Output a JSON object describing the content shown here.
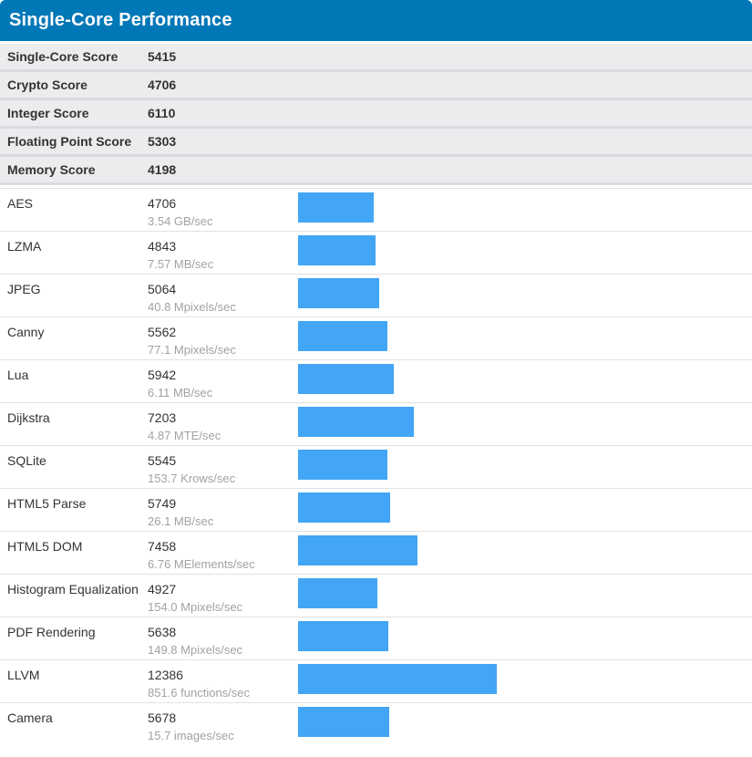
{
  "header": {
    "title": "Single-Core Performance"
  },
  "summary": {
    "rows": [
      {
        "label": "Single-Core Score",
        "value": "5415"
      },
      {
        "label": "Crypto Score",
        "value": "4706"
      },
      {
        "label": "Integer Score",
        "value": "6110"
      },
      {
        "label": "Floating Point Score",
        "value": "5303"
      },
      {
        "label": "Memory Score",
        "value": "4198"
      }
    ]
  },
  "chart_data": {
    "type": "bar",
    "orientation": "horizontal",
    "title": "Single-Core Performance",
    "categories": [
      "AES",
      "LZMA",
      "JPEG",
      "Canny",
      "Lua",
      "Dijkstra",
      "SQLite",
      "HTML5 Parse",
      "HTML5 DOM",
      "Histogram Equalization",
      "PDF Rendering",
      "LLVM",
      "Camera"
    ],
    "values": [
      4706,
      4843,
      5064,
      5562,
      5942,
      7203,
      5545,
      5749,
      7458,
      4927,
      5638,
      12386,
      5678
    ],
    "rate_labels": [
      "3.54 GB/sec",
      "7.57 MB/sec",
      "40.8 Mpixels/sec",
      "77.1 Mpixels/sec",
      "6.11 MB/sec",
      "4.87 MTE/sec",
      "153.7 Krows/sec",
      "26.1 MB/sec",
      "6.76 MElements/sec",
      "154.0 Mpixels/sec",
      "149.8 Mpixels/sec",
      "851.6 functions/sec",
      "15.7 images/sec"
    ],
    "xlim": [
      0,
      12386
    ],
    "grid": false,
    "legend_position": "none",
    "bar_color": "#42a5f5"
  },
  "colors": {
    "header_bg": "#0077b7",
    "header_text": "#ffffff",
    "summary_row_bg": "#ececee",
    "summary_divider": "#d8dbe0",
    "row_border": "#e2e2e2",
    "text_primary": "#333333",
    "text_secondary": "#a2a2a2",
    "bar": "#42a5f5"
  }
}
